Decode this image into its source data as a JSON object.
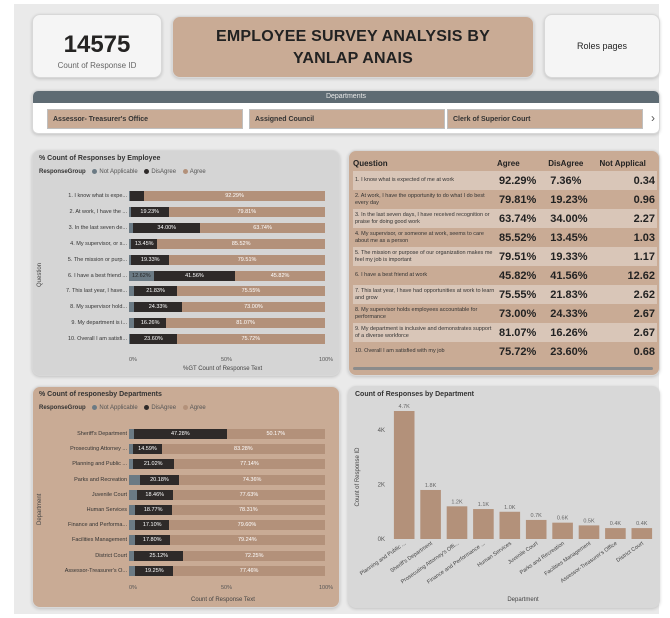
{
  "kpi": {
    "value": "14575",
    "label": "Count of Response ID"
  },
  "title": {
    "line1": "EMPLOYEE SURVEY ANALYSIS BY",
    "line2": "YANLAP ANAIS"
  },
  "roles_button": "Roles pages",
  "departments_slicer": {
    "header": "Departments",
    "tiles": [
      "Assessor- Treasurer's Office",
      "Assigned Council",
      "Clerk of Superior Court"
    ],
    "arrow": "›"
  },
  "legend": {
    "title": "ResponseGroup",
    "not_applicable": "Not Applicable",
    "disagree": "DisAgree",
    "agree": "Agree"
  },
  "colors": {
    "not_applicable": "#6b7a84",
    "disagree": "#2e2a29",
    "agree": "#b3917a",
    "tan": "#c9ab95"
  },
  "chart_data": [
    {
      "type": "bar",
      "title": "% Count of Responses by Employee",
      "ylabel": "Question",
      "xlabel": "%GT Count of Response Text",
      "ticks": [
        "0%",
        "50%",
        "100%"
      ],
      "categories": [
        "1. I know what is expe...",
        "2. At work, I have the ...",
        "3. In the last seven de...",
        "4. My supervisor, or s...",
        "5. The mission or purp...",
        "6. I have a best friend ...",
        "7. This last year, I have...",
        "8. My supervisor hold...",
        "9. My department is i...",
        "10. Overall I am satisfi..."
      ],
      "series": [
        {
          "name": "Not Applicable",
          "values": [
            0.34,
            0.96,
            2.27,
            1.03,
            1.17,
            12.62,
            2.62,
            2.67,
            2.67,
            0.68
          ],
          "labels": [
            "",
            "",
            "",
            "",
            "",
            "12.62%",
            "",
            "",
            "",
            ""
          ]
        },
        {
          "name": "DisAgree",
          "values": [
            7.36,
            19.23,
            34.0,
            13.45,
            19.33,
            41.56,
            21.83,
            24.33,
            16.26,
            23.6
          ],
          "labels": [
            "",
            "19.23%",
            "34.00%",
            "13.45%",
            "19.33%",
            "41.56%",
            "21.83%",
            "24.33%",
            "16.26%",
            "23.60%"
          ]
        },
        {
          "name": "Agree",
          "values": [
            92.29,
            79.81,
            63.74,
            85.52,
            79.51,
            45.82,
            75.55,
            73.0,
            81.07,
            75.72
          ],
          "labels": [
            "92.29%",
            "79.81%",
            "63.74%",
            "85.52%",
            "79.51%",
            "45.82%",
            "75.55%",
            "73.00%",
            "81.07%",
            "75.72%"
          ]
        }
      ]
    },
    {
      "type": "bar",
      "title": "% Count of responesby Departments",
      "ylabel": "Department",
      "xlabel": "Count of Response Text",
      "ticks": [
        "0%",
        "50%",
        "100%"
      ],
      "categories": [
        "Sheriff's Department",
        "Prosecuting Attorney ...",
        "Planning and Public ...",
        "Parks and Recreation",
        "Juvenile Court",
        "Human Services",
        "Finance and Performa...",
        "Facilities Management",
        "District Court",
        "Assessor-Treasurer's O..."
      ],
      "series": [
        {
          "name": "Not Applicable",
          "values": [
            2.55,
            2.13,
            1.84,
            5.46,
            3.91,
            2.94,
            3.3,
            2.96,
            2.63,
            3.3
          ]
        },
        {
          "name": "DisAgree",
          "values": [
            47.28,
            14.59,
            21.02,
            20.18,
            18.46,
            18.77,
            17.1,
            17.8,
            25.12,
            19.25
          ],
          "labels": [
            "47.28%",
            "14.59%",
            "21.02%",
            "20.18%",
            "18.46%",
            "18.77%",
            "17.10%",
            "17.80%",
            "25.12%",
            "19.25%"
          ]
        },
        {
          "name": "Agree",
          "values": [
            50.17,
            83.28,
            77.14,
            74.36,
            77.63,
            78.31,
            79.6,
            79.24,
            72.25,
            77.46
          ],
          "labels": [
            "50.17%",
            "83.28%",
            "77.14%",
            "74.36%",
            "77.63%",
            "78.31%",
            "79.60%",
            "79.24%",
            "72.25%",
            "77.46%"
          ]
        }
      ]
    },
    {
      "type": "bar",
      "title": "Count of Responses by Department",
      "xlabel": "Department",
      "ylabel": "Count of Response ID",
      "ylim": [
        0,
        4700
      ],
      "yticks": [
        {
          "v": 0,
          "t": "0K"
        },
        {
          "v": 2000,
          "t": "2K"
        },
        {
          "v": 4000,
          "t": "4K"
        }
      ],
      "categories": [
        "Planning and Public ...",
        "Sheriff's Department",
        "Prosecuting Attorney's Offi...",
        "Finance and Performance ...",
        "Human Services",
        "Juvenile Court",
        "Parks and Recreation",
        "Facilities Management",
        "Assessor-Treasurer's Office",
        "District Court"
      ],
      "values": [
        4700,
        1800,
        1200,
        1100,
        1000,
        700,
        600,
        500,
        400,
        400
      ],
      "labels": [
        "4.7K",
        "1.8K",
        "1.2K",
        "1.1K",
        "1.0K",
        "0.7K",
        "0.6K",
        "0.5K",
        "0.4K",
        "0.4K"
      ]
    }
  ],
  "table": {
    "headers": [
      "Question",
      "Agree",
      "DisAgree",
      "Not Applical"
    ],
    "rows": [
      {
        "q": "1. I know what is expected of me at work",
        "agree": "92.29%",
        "disagree": "7.36%",
        "na": "0.34"
      },
      {
        "q": "2. At work, I have the opportunity to do what I do best every day",
        "agree": "79.81%",
        "disagree": "19.23%",
        "na": "0.96"
      },
      {
        "q": "3. In the last seven days, I have received recognition or praise for doing good work",
        "agree": "63.74%",
        "disagree": "34.00%",
        "na": "2.27"
      },
      {
        "q": "4. My supervisor, or someone at work, seems to care about me as a person",
        "agree": "85.52%",
        "disagree": "13.45%",
        "na": "1.03"
      },
      {
        "q": "5. The mission or purpose of our organization makes me feel my job is important",
        "agree": "79.51%",
        "disagree": "19.33%",
        "na": "1.17"
      },
      {
        "q": "6. I have a best friend at work",
        "agree": "45.82%",
        "disagree": "41.56%",
        "na": "12.62"
      },
      {
        "q": "7. This last year, I have had opportunities at work to learn and grow",
        "agree": "75.55%",
        "disagree": "21.83%",
        "na": "2.62"
      },
      {
        "q": "8. My supervisor holds employees accountable for performance",
        "agree": "73.00%",
        "disagree": "24.33%",
        "na": "2.67"
      },
      {
        "q": "9. My department is inclusive and demonstrates support of a diverse workforce",
        "agree": "81.07%",
        "disagree": "16.26%",
        "na": "2.67"
      },
      {
        "q": "10. Overall I am satisfied with my job",
        "agree": "75.72%",
        "disagree": "23.60%",
        "na": "0.68"
      }
    ]
  }
}
